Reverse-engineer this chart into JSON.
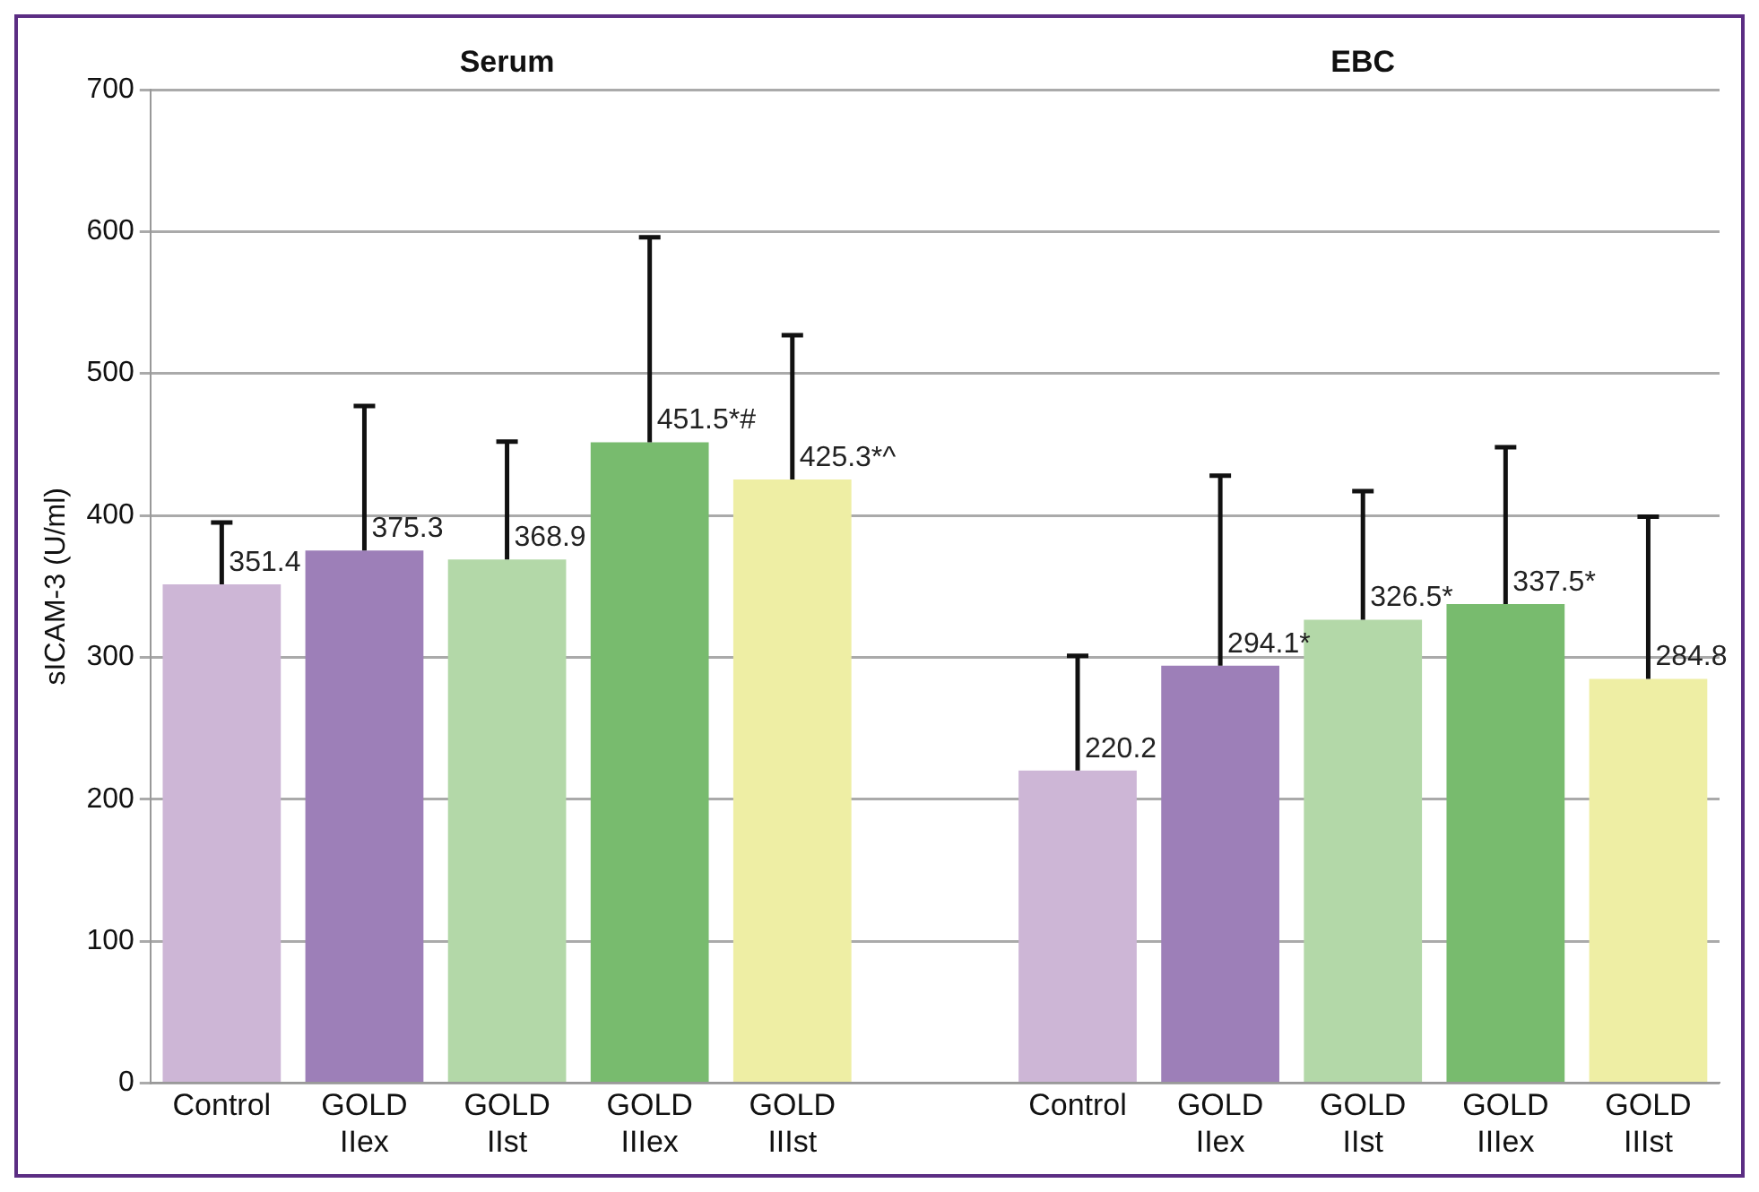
{
  "chart_data": {
    "type": "bar",
    "ylabel": "sICAM-3 (U/ml)",
    "annotations": [
      "Serum",
      "EBC"
    ],
    "categories": [
      "Control",
      "GOLD IIex",
      "GOLD IIst",
      "GOLD IIIex",
      "GOLD IIIst",
      null,
      "Control",
      "GOLD IIex",
      "GOLD IIst",
      "GOLD IIIex",
      "GOLD IIIst"
    ],
    "values": [
      351.4,
      375.3,
      368.9,
      451.5,
      425.3,
      null,
      220.2,
      294.1,
      326.5,
      337.5,
      284.8
    ],
    "value_labels": [
      "351.4",
      "375.3",
      "368.9",
      "451.5*#",
      "425.3*^",
      null,
      "220.2",
      "294.1*",
      "326.5*",
      "337.5*",
      "284.8"
    ],
    "errors": [
      [
        351.4,
        395
      ],
      [
        375.3,
        477
      ],
      [
        368.9,
        452
      ],
      [
        451.5,
        596
      ],
      [
        425.3,
        527
      ],
      null,
      [
        220.2,
        301
      ],
      [
        294.1,
        428
      ],
      [
        326.5,
        417
      ],
      [
        337.5,
        448
      ],
      [
        284.8,
        399
      ]
    ],
    "colors": [
      "#cdb6d6",
      "#9d7fb8",
      "#b3d8a8",
      "#78bb6e",
      "#eeeea4",
      "#ffffff",
      "#cdb6d6",
      "#9d7fb8",
      "#b3d8a8",
      "#78bb6e",
      "#eeeea4"
    ],
    "ylim": [
      0,
      700
    ],
    "yticks": [
      0,
      100,
      200,
      300,
      400,
      500,
      600,
      700
    ],
    "grid": "y"
  }
}
